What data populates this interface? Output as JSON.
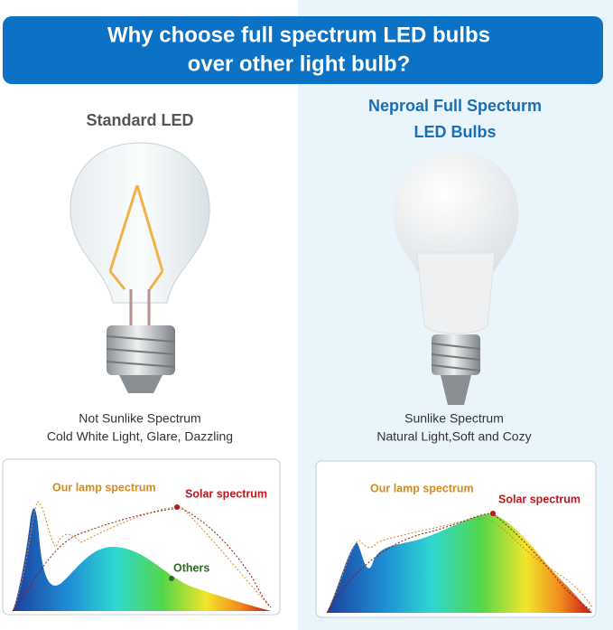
{
  "header": {
    "title_lines": [
      "Why choose full spectrum LED bulbs",
      "over other light bulb?"
    ]
  },
  "left": {
    "title_lines": [
      "Standard LED"
    ],
    "description_lines": [
      "Not Sunlike Spectrum",
      "Cold White Light, Glare, Dazzling"
    ],
    "spectrum_labels": [
      "Our lamp spectrum",
      "Solar spectrum",
      "Others"
    ]
  },
  "right": {
    "title_lines": [
      "Neproal Full Specturm",
      "LED Bulbs"
    ],
    "description_lines": [
      "Sunlike Spectrum",
      "Natural Light,Soft and Cozy"
    ],
    "spectrum_labels": [
      "Our lamp spectrum",
      "Solar spectrum"
    ]
  }
}
